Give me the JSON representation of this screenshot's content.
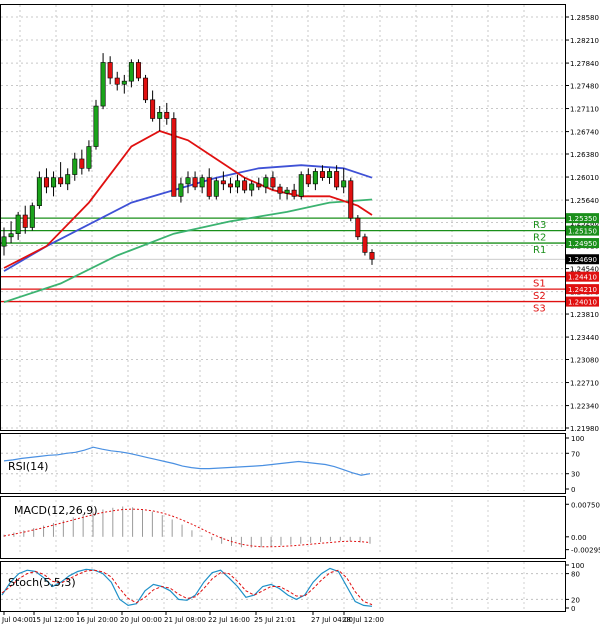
{
  "chart_data": {
    "type": "candlestick",
    "main": {
      "y_ticks": [
        "1.28580",
        "1.28210",
        "1.27840",
        "1.27480",
        "1.27110",
        "1.26740",
        "1.26380",
        "1.26010",
        "1.25640",
        "1.25280",
        "1.24910",
        "1.24540",
        "1.24170",
        "1.23810",
        "1.23440",
        "1.23080",
        "1.22710",
        "1.22340",
        "1.21980"
      ],
      "ylim": [
        1.2198,
        1.2876
      ],
      "x_ticks": [
        "Jul 04:00",
        "15 Jul 12:00",
        "16 Jul 20:00",
        "20 Jul 00:00",
        "21 Jul 08:00",
        "22 Jul 16:00",
        "25 Jul 21:01",
        "27 Jul 04:00",
        "28 Jul 12:00"
      ],
      "current_price": "1.24690",
      "levels": [
        {
          "name": "R3",
          "value": 1.2535,
          "label": "1.25350",
          "kind": "resistance"
        },
        {
          "name": "R2",
          "value": 1.2515,
          "label": "1.25150",
          "kind": "resistance"
        },
        {
          "name": "R1",
          "value": 1.2495,
          "label": "1.24950",
          "kind": "resistance"
        },
        {
          "name": "S1",
          "value": 1.2441,
          "label": "1.24410",
          "kind": "support"
        },
        {
          "name": "S2",
          "value": 1.2421,
          "label": "1.24210",
          "kind": "support"
        },
        {
          "name": "S3",
          "value": 1.2401,
          "label": "1.24010",
          "kind": "support"
        }
      ],
      "candles": [
        [
          1.249,
          1.252,
          1.2475,
          1.2505
        ],
        [
          1.2505,
          1.253,
          1.2495,
          1.251
        ],
        [
          1.251,
          1.2545,
          1.25,
          1.254
        ],
        [
          1.254,
          1.2555,
          1.251,
          1.252
        ],
        [
          1.252,
          1.256,
          1.2515,
          1.2555
        ],
        [
          1.2555,
          1.261,
          1.255,
          1.26
        ],
        [
          1.26,
          1.2615,
          1.2575,
          1.2585
        ],
        [
          1.2585,
          1.261,
          1.257,
          1.26
        ],
        [
          1.26,
          1.2625,
          1.2585,
          1.259
        ],
        [
          1.259,
          1.2615,
          1.258,
          1.2605
        ],
        [
          1.2605,
          1.264,
          1.2595,
          1.263
        ],
        [
          1.263,
          1.2645,
          1.2605,
          1.2615
        ],
        [
          1.2615,
          1.266,
          1.261,
          1.265
        ],
        [
          1.265,
          1.2725,
          1.2645,
          1.2715
        ],
        [
          1.2715,
          1.28,
          1.271,
          1.2785
        ],
        [
          1.2785,
          1.2795,
          1.275,
          1.276
        ],
        [
          1.276,
          1.277,
          1.274,
          1.275
        ],
        [
          1.275,
          1.2765,
          1.2735,
          1.2755
        ],
        [
          1.2755,
          1.279,
          1.2745,
          1.2785
        ],
        [
          1.2785,
          1.279,
          1.2755,
          1.276
        ],
        [
          1.276,
          1.2765,
          1.272,
          1.2725
        ],
        [
          1.2725,
          1.274,
          1.269,
          1.2695
        ],
        [
          1.2695,
          1.2715,
          1.2675,
          1.2705
        ],
        [
          1.2705,
          1.272,
          1.2685,
          1.2695
        ],
        [
          1.2695,
          1.2705,
          1.257,
          1.257
        ],
        [
          1.257,
          1.26,
          1.256,
          1.259
        ],
        [
          1.259,
          1.261,
          1.2575,
          1.26
        ],
        [
          1.26,
          1.261,
          1.258,
          1.2585
        ],
        [
          1.2585,
          1.2605,
          1.2575,
          1.26
        ],
        [
          1.26,
          1.2615,
          1.2565,
          1.257
        ],
        [
          1.257,
          1.26,
          1.2565,
          1.2595
        ],
        [
          1.2595,
          1.261,
          1.258,
          1.259
        ],
        [
          1.259,
          1.26,
          1.2575,
          1.2585
        ],
        [
          1.2585,
          1.2605,
          1.2575,
          1.2595
        ],
        [
          1.2595,
          1.26,
          1.2575,
          1.258
        ],
        [
          1.258,
          1.2595,
          1.257,
          1.259
        ],
        [
          1.259,
          1.26,
          1.258,
          1.2585
        ],
        [
          1.2585,
          1.2605,
          1.2575,
          1.26
        ],
        [
          1.26,
          1.261,
          1.258,
          1.2585
        ],
        [
          1.2585,
          1.259,
          1.2565,
          1.2575
        ],
        [
          1.2575,
          1.2585,
          1.2565,
          1.258
        ],
        [
          1.258,
          1.259,
          1.2565,
          1.257
        ],
        [
          1.257,
          1.261,
          1.2565,
          1.2605
        ],
        [
          1.2605,
          1.2615,
          1.2585,
          1.259
        ],
        [
          1.259,
          1.2615,
          1.258,
          1.261
        ],
        [
          1.261,
          1.262,
          1.2595,
          1.26
        ],
        [
          1.26,
          1.2615,
          1.259,
          1.261
        ],
        [
          1.261,
          1.262,
          1.258,
          1.2585
        ],
        [
          1.2585,
          1.2615,
          1.2575,
          1.2595
        ],
        [
          1.2595,
          1.26,
          1.253,
          1.2535
        ],
        [
          1.2535,
          1.254,
          1.25,
          1.2505
        ],
        [
          1.2505,
          1.251,
          1.2475,
          1.248
        ],
        [
          1.248,
          1.2485,
          1.246,
          1.2469
        ]
      ],
      "ma_fast": [
        [
          0,
          1.2455
        ],
        [
          6,
          1.249
        ],
        [
          12,
          1.256
        ],
        [
          18,
          1.265
        ],
        [
          22,
          1.2675
        ],
        [
          26,
          1.266
        ],
        [
          30,
          1.263
        ],
        [
          34,
          1.26
        ],
        [
          38,
          1.258
        ],
        [
          42,
          1.257
        ],
        [
          46,
          1.257
        ],
        [
          50,
          1.2555
        ],
        [
          52,
          1.254
        ]
      ],
      "ma_mid": [
        [
          0,
          1.245
        ],
        [
          6,
          1.249
        ],
        [
          12,
          1.2525
        ],
        [
          18,
          1.256
        ],
        [
          24,
          1.258
        ],
        [
          30,
          1.26
        ],
        [
          36,
          1.2615
        ],
        [
          42,
          1.262
        ],
        [
          48,
          1.2615
        ],
        [
          52,
          1.26
        ]
      ],
      "ma_slow": [
        [
          0,
          1.24
        ],
        [
          8,
          1.243
        ],
        [
          16,
          1.2475
        ],
        [
          24,
          1.251
        ],
        [
          32,
          1.253
        ],
        [
          40,
          1.2545
        ],
        [
          46,
          1.256
        ],
        [
          52,
          1.2565
        ]
      ]
    },
    "rsi": {
      "title": "RSI(14)",
      "ticks": [
        "100",
        "70",
        "30",
        "0"
      ],
      "ylim": [
        0,
        100
      ],
      "values": [
        55,
        57,
        60,
        62,
        64,
        66,
        67,
        70,
        72,
        76,
        82,
        78,
        75,
        73,
        70,
        66,
        62,
        58,
        54,
        50,
        45,
        42,
        40,
        40,
        41,
        42,
        43,
        44,
        45,
        46,
        48,
        50,
        52,
        54,
        52,
        50,
        48,
        44,
        38,
        32,
        27,
        30
      ]
    },
    "macd": {
      "title": "MACD(12,26,9)",
      "ticks": [
        "0.007506",
        "0.00",
        "-0.002955"
      ],
      "ylim": [
        -0.0035,
        0.0078
      ],
      "histogram": [
        0.0005,
        0.001,
        0.0015,
        0.002,
        0.0026,
        0.0032,
        0.0038,
        0.0045,
        0.0052,
        0.0058,
        0.0063,
        0.0067,
        0.007,
        0.0068,
        0.0064,
        0.0058,
        0.005,
        0.004,
        0.0028,
        0.0015,
        0.0003,
        -0.0008,
        -0.0016,
        -0.0021,
        -0.0024,
        -0.0025,
        -0.0024,
        -0.0022,
        -0.002,
        -0.0018,
        -0.0016,
        -0.0014,
        -0.0012,
        -0.001,
        -0.0009,
        -0.001,
        -0.0013,
        -0.0016
      ],
      "signal": [
        0.0002,
        0.0006,
        0.0011,
        0.0016,
        0.0021,
        0.0027,
        0.0033,
        0.0039,
        0.0045,
        0.0051,
        0.0056,
        0.006,
        0.0063,
        0.0064,
        0.0063,
        0.006,
        0.0055,
        0.0048,
        0.0039,
        0.0029,
        0.0018,
        0.0007,
        -0.0003,
        -0.0011,
        -0.0017,
        -0.0021,
        -0.0023,
        -0.0023,
        -0.0022,
        -0.0021,
        -0.0019,
        -0.0017,
        -0.0015,
        -0.0013,
        -0.0011,
        -0.001,
        -0.0011,
        -0.0013
      ]
    },
    "stoch": {
      "title": "Stoch(5,5,3)",
      "ticks": [
        "100",
        "80",
        "20",
        "0"
      ],
      "ylim": [
        0,
        100
      ],
      "k": [
        30,
        60,
        80,
        88,
        85,
        70,
        50,
        60,
        75,
        85,
        90,
        88,
        80,
        60,
        20,
        6,
        10,
        40,
        55,
        50,
        40,
        20,
        18,
        30,
        60,
        82,
        88,
        70,
        50,
        25,
        30,
        50,
        55,
        45,
        30,
        20,
        30,
        60,
        80,
        92,
        85,
        50,
        15,
        6,
        4
      ],
      "d": [
        35,
        50,
        68,
        80,
        85,
        78,
        62,
        58,
        68,
        78,
        86,
        88,
        84,
        72,
        45,
        22,
        12,
        25,
        42,
        50,
        46,
        32,
        22,
        26,
        45,
        68,
        82,
        80,
        62,
        40,
        30,
        40,
        50,
        50,
        40,
        28,
        28,
        45,
        65,
        82,
        88,
        70,
        38,
        15,
        8
      ]
    }
  }
}
